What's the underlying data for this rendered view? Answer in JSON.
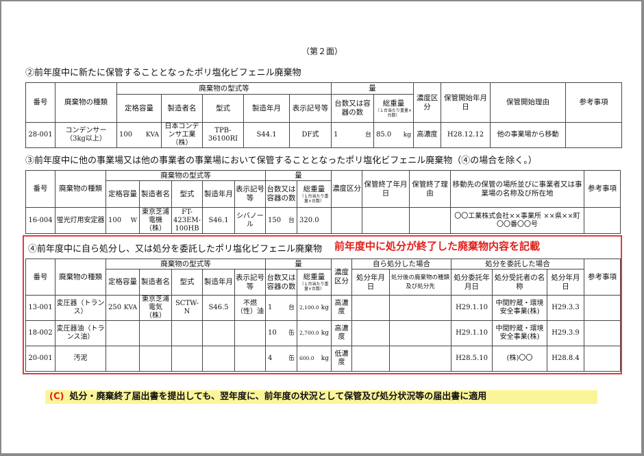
{
  "page_label": "（第２面）",
  "section2": {
    "title": "②前年度中に新たに保管することとなったポリ塩化ビフェニル廃棄物",
    "headers": {
      "no": "番号",
      "kind": "廃棄物の種類",
      "group_type": "廃棄物の型式等",
      "rating": "定格容量",
      "maker": "製造者名",
      "model": "型式",
      "mfg": "製造年月",
      "mark": "表示記号等",
      "group_qty": "量",
      "count": "台数又は容器の数",
      "weight": "総重量",
      "weight_note": "（１台当たり重量×台数）",
      "conc": "濃度区分",
      "start_date": "保管開始年月日",
      "start_reason": "保管開始理由",
      "notes": "参考事項"
    },
    "rows": [
      {
        "no": "28-001",
        "kind": "コンデンサー（3kg以上）",
        "rating": "100",
        "rating_unit": "KVA",
        "maker": "日本コンデンサ工業（株）",
        "model": "TPB-36100RI",
        "mfg": "S44.1",
        "mark": "DF式",
        "count": "1",
        "count_unit": "台",
        "weight": "85.0",
        "weight_unit": "kg",
        "conc": "高濃度",
        "start_date": "H28.12.12",
        "start_reason": "他の事業場から移動",
        "notes": ""
      }
    ]
  },
  "section3": {
    "title": "③前年度中に他の事業場又は他の事業者の事業場において保管することとなったポリ塩化ビフェニル廃棄物（④の場合を除く。）",
    "headers": {
      "no": "番号",
      "kind": "廃棄物の種類",
      "group_type": "廃棄物の型式等",
      "rating": "定格容量",
      "maker": "製造者名",
      "model": "型式",
      "mfg": "製造年月",
      "mark": "表示記号等",
      "group_qty": "量",
      "count": "台数又は容器の数",
      "weight": "総重量",
      "weight_note": "（１台当たり重量×台数）",
      "conc": "濃度区分",
      "end_date": "保管終了年月日",
      "end_reason": "保管終了理由",
      "destination": "移動先の保管の場所並びに事業者又は事業場の名称及び所在地",
      "notes": "参考事項"
    },
    "rows": [
      {
        "no": "16-004",
        "kind": "蛍光灯用安定器",
        "rating": "100",
        "rating_unit": "W",
        "maker": "東京芝浦電機（株）",
        "model": "FT-423EM-100HB",
        "mfg": "S46.1",
        "mark": "シバノール",
        "count": "150",
        "count_unit": "台",
        "weight": "320.0",
        "weight_unit": "",
        "conc": "",
        "end_date": "",
        "end_reason": "",
        "destination": "〇〇工業株式会社××事業所 ××県××町〇〇番〇〇号",
        "notes": ""
      }
    ]
  },
  "section4": {
    "title": "④前年度中に自ら処分し、又は処分を委託したポリ塩化ビフェニル廃棄物",
    "annotation": "前年度中に処分が終了した廃棄物内容を記載",
    "headers": {
      "no": "番号",
      "kind": "廃棄物の種類",
      "group_type": "廃棄物の型式等",
      "rating": "定格容量",
      "maker": "製造者名",
      "model": "型式",
      "mfg": "製造年月",
      "mark": "表示記号等",
      "group_qty": "量",
      "count": "台数又は容器の数",
      "weight": "総重量",
      "weight_note": "（１台当たり重量×台数）",
      "conc": "濃度区分",
      "group_self": "自ら処分した場合",
      "self_date": "処分年月日",
      "self_dest": "処分後の廃棄物の種類及び処分先",
      "group_entrust": "処分を委託した場合",
      "entrust_date": "処分委託年月日",
      "contractor": "処分受託者の名称",
      "disposal_date": "処分年月日",
      "notes": "参考事項"
    },
    "rows": [
      {
        "no": "13-001",
        "kind": "変圧器（トランス）",
        "rating": "250",
        "rating_unit": "KVA",
        "maker": "東京芝浦電気（株）",
        "model": "SCTW-N",
        "mfg": "S46.5",
        "mark": "不燃（性）油",
        "count": "1",
        "count_unit": "台",
        "weight": "2,100.0",
        "weight_unit": "kg",
        "conc": "高濃度",
        "self_date": "",
        "self_dest": "",
        "entrust_date": "H29.1.10",
        "contractor": "中間貯蔵・環境安全事業(株)",
        "disposal_date": "H29.3.3",
        "notes": ""
      },
      {
        "no": "18-002",
        "kind": "変圧器油（トランス油）",
        "rating": "",
        "rating_unit": "",
        "maker": "",
        "model": "",
        "mfg": "",
        "mark": "",
        "count": "10",
        "count_unit": "缶",
        "weight": "2,700.0",
        "weight_unit": "kg",
        "conc": "高濃度",
        "self_date": "",
        "self_dest": "",
        "entrust_date": "H29.1.10",
        "contractor": "中間貯蔵・環境安全事業(株)",
        "disposal_date": "H29.3.9",
        "notes": ""
      },
      {
        "no": "20-001",
        "kind": "汚泥",
        "rating": "",
        "rating_unit": "",
        "maker": "",
        "model": "",
        "mfg": "",
        "mark": "",
        "count": "4",
        "count_unit": "缶",
        "weight": "600.0",
        "weight_unit": "kg",
        "conc": "低濃度",
        "self_date": "",
        "self_dest": "",
        "entrust_date": "H28.5.10",
        "contractor": "(株)〇〇",
        "disposal_date": "H28.8.4",
        "notes": ""
      }
    ]
  },
  "footer": {
    "marker": "(C)",
    "text": "処分・廃棄終了届出書を提出しても、翌年度に、前年度の状況として保管及び処分状況等の届出書に適用"
  },
  "colors": {
    "red": "#e0201b",
    "highlight": "#fbf59a",
    "border": "#444444"
  }
}
